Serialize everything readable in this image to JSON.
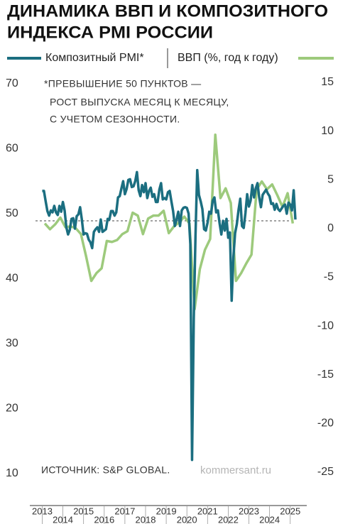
{
  "chart_data": {
    "type": "line",
    "title": [
      "ДИНАМИКА ВВП И КОМПОЗИТНОГО",
      "ИНДЕКСА PMI РОССИИ"
    ],
    "note": [
      "*ПРЕВЫШЕНИЕ 50 ПУНКТОВ —",
      "РОСТ ВЫПУСКА МЕСЯЦ К МЕСЯЦУ,",
      "С УЧЕТОМ СЕЗОННОСТИ."
    ],
    "source": "ИСТОЧНИК: S&P GLOBAL.",
    "credit": "kommersant.ru",
    "xlim": [
      2012.4,
      2025.8
    ],
    "xticks": [
      2013,
      2014,
      2015,
      2016,
      2017,
      2018,
      2019,
      2020,
      2021,
      2022,
      2023,
      2024,
      2025
    ],
    "ylim": [
      10,
      70
    ],
    "yticks": [
      10,
      20,
      30,
      40,
      50,
      60,
      70
    ],
    "y2lim": [
      -25,
      15
    ],
    "y2ticks": [
      -25,
      -20,
      -15,
      -10,
      -5,
      0,
      5,
      10,
      15
    ],
    "reference_line": 50,
    "series": [
      {
        "name": "Композитный PMI*",
        "color": "#1b6e80",
        "axis": "y",
        "x": [
          2013,
          2013.083,
          2013.167,
          2013.25,
          2013.333,
          2013.417,
          2013.5,
          2013.583,
          2013.667,
          2013.75,
          2013.833,
          2013.917,
          2014,
          2014.083,
          2014.167,
          2014.25,
          2014.333,
          2014.417,
          2014.5,
          2014.583,
          2014.667,
          2014.75,
          2014.833,
          2014.917,
          2015,
          2015.083,
          2015.167,
          2015.25,
          2015.333,
          2015.417,
          2015.5,
          2015.583,
          2015.667,
          2015.75,
          2015.833,
          2015.917,
          2016,
          2016.083,
          2016.167,
          2016.25,
          2016.333,
          2016.417,
          2016.5,
          2016.583,
          2016.667,
          2016.75,
          2016.833,
          2016.917,
          2017,
          2017.083,
          2017.167,
          2017.25,
          2017.333,
          2017.417,
          2017.5,
          2017.583,
          2017.667,
          2017.75,
          2017.833,
          2017.917,
          2018,
          2018.083,
          2018.167,
          2018.25,
          2018.333,
          2018.417,
          2018.5,
          2018.583,
          2018.667,
          2018.75,
          2018.833,
          2018.917,
          2019,
          2019.083,
          2019.167,
          2019.25,
          2019.333,
          2019.417,
          2019.5,
          2019.583,
          2019.667,
          2019.75,
          2019.833,
          2019.917,
          2020,
          2020.083,
          2020.167,
          2020.25,
          2020.333,
          2020.417,
          2020.5,
          2020.583,
          2020.667,
          2020.75,
          2020.833,
          2020.917,
          2021,
          2021.083,
          2021.167,
          2021.25,
          2021.333,
          2021.417,
          2021.5,
          2021.583,
          2021.667,
          2021.75,
          2021.833,
          2021.917,
          2022,
          2022.083,
          2022.167,
          2022.25,
          2022.333,
          2022.417,
          2022.5,
          2022.583,
          2022.667,
          2022.75,
          2022.833,
          2022.917,
          2023,
          2023.083,
          2023.167,
          2023.25,
          2023.333,
          2023.417,
          2023.5,
          2023.583,
          2023.667,
          2023.75,
          2023.833,
          2023.917,
          2024,
          2024.083,
          2024.167,
          2024.25,
          2024.333,
          2024.417,
          2024.5,
          2024.583,
          2024.667,
          2024.75,
          2024.833,
          2024.917,
          2025,
          2025.083,
          2025.167,
          2025.25
        ],
        "values": [
          54.6,
          54.6,
          53.0,
          51.5,
          50.8,
          51.6,
          51.3,
          52.3,
          51.3,
          50.9,
          52.3,
          51.4,
          52.9,
          51.6,
          49.0,
          47.9,
          48.6,
          50.3,
          50.4,
          48.8,
          50.7,
          51.0,
          52.1,
          50.2,
          47.9,
          48.1,
          48.0,
          47.1,
          46.7,
          45.8,
          48.3,
          48.7,
          49.0,
          48.3,
          50.2,
          48.3,
          48.5,
          48.7,
          50.3,
          50.2,
          51.5,
          51.5,
          50.8,
          51.3,
          53.6,
          53.8,
          55.0,
          56.1,
          54.1,
          54.9,
          56.3,
          56.4,
          55.2,
          55.3,
          56.1,
          57.5,
          54.7,
          53.8,
          55.5,
          54.4,
          55.8,
          53.5,
          54.6,
          55.1,
          53.7,
          54.1,
          52.9,
          52.9,
          54.8,
          55.8,
          53.3,
          53.5,
          53.3,
          54.4,
          54.6,
          53.0,
          51.5,
          49.2,
          50.2,
          51.4,
          49.2,
          51.6,
          52.0,
          52.1,
          52.0,
          51.1,
          46.4,
          13.2,
          35.0,
          47.8,
          57.8,
          54.0,
          53.0,
          51.8,
          48.7,
          48.5,
          49.7,
          51.4,
          51.1,
          53.1,
          53.6,
          51.3,
          51.6,
          49.6,
          47.9,
          50.0,
          48.5,
          50.3,
          47.4,
          48.2,
          37.7,
          44.4,
          48.1,
          49.5,
          51.7,
          53.4,
          49.2,
          48.9,
          51.2,
          54.1,
          52.2,
          53.1,
          55.5,
          53.6,
          55.0,
          55.8,
          53.6,
          52.1,
          54.0,
          54.4,
          54.8,
          54.2,
          53.8,
          52.6,
          52.7,
          51.7,
          52.6,
          51.8,
          51.5,
          51.9,
          52.3,
          52.5,
          51.1,
          52.8,
          52.5,
          51.6,
          54.7,
          50.2
        ]
      },
      {
        "name": "ВВП (%, год к году)",
        "color": "#9dca7c",
        "axis": "y2",
        "x": [
          2013.125,
          2013.375,
          2013.625,
          2013.875,
          2014.125,
          2014.375,
          2014.625,
          2014.875,
          2015.125,
          2015.375,
          2015.625,
          2015.875,
          2016.125,
          2016.375,
          2016.625,
          2016.875,
          2017.125,
          2017.375,
          2017.625,
          2017.875,
          2018.125,
          2018.375,
          2018.625,
          2018.875,
          2019.125,
          2019.375,
          2019.625,
          2019.875,
          2020.125,
          2020.375,
          2020.625,
          2020.875,
          2021.125,
          2021.375,
          2021.625,
          2021.875,
          2022.125,
          2022.375,
          2022.625,
          2022.875,
          2023.125,
          2023.375,
          2023.625,
          2023.875,
          2024.125,
          2024.375,
          2024.625,
          2024.875,
          2025.125
        ],
        "values": [
          1.4,
          0.8,
          1.3,
          2.0,
          1.0,
          1.1,
          0.9,
          0.3,
          -2.0,
          -4.5,
          -3.7,
          -3.2,
          -0.4,
          -0.5,
          -0.3,
          0.3,
          0.6,
          2.5,
          2.2,
          0.3,
          1.9,
          2.2,
          2.2,
          2.7,
          0.4,
          1.1,
          1.5,
          2.1,
          1.4,
          -7.4,
          -3.3,
          -1.3,
          -0.2,
          10.5,
          4.0,
          5.0,
          3.5,
          -4.5,
          -3.7,
          -2.7,
          -1.8,
          4.9,
          5.7,
          4.9,
          5.4,
          4.3,
          3.1,
          4.5,
          1.4
        ]
      }
    ]
  }
}
